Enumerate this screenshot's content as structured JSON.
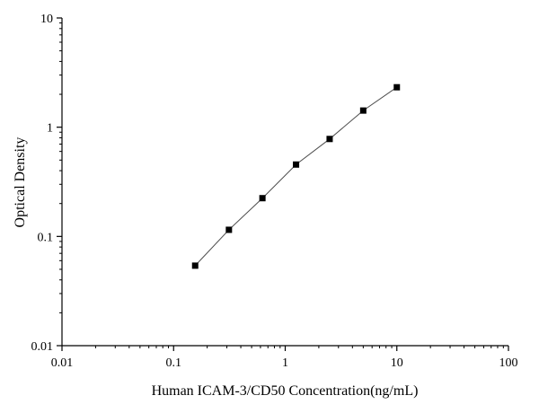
{
  "chart_data": {
    "type": "scatter",
    "title": "",
    "xlabel": "Human ICAM-3/CD50 Concentration(ng/mL)",
    "ylabel": "Optical Density",
    "x_scale": "log",
    "y_scale": "log",
    "xlim": [
      0.01,
      100
    ],
    "ylim": [
      0.01,
      10
    ],
    "x_ticks": [
      0.01,
      0.1,
      1,
      10,
      100
    ],
    "x_tick_labels": [
      "0.01",
      "0.1",
      "1",
      "10",
      "100"
    ],
    "y_ticks": [
      0.01,
      0.1,
      1,
      10
    ],
    "y_tick_labels": [
      "0.01",
      "0.1",
      "1",
      "10"
    ],
    "grid": false,
    "legend": "none",
    "series": [
      {
        "x": [
          0.156,
          0.313,
          0.625,
          1.25,
          2.5,
          5,
          10
        ],
        "y": [
          0.054,
          0.115,
          0.224,
          0.455,
          0.78,
          1.42,
          2.32
        ],
        "marker": "square",
        "line": true,
        "marker_color": "#000000",
        "line_color": "#4d4d4d"
      }
    ]
  }
}
